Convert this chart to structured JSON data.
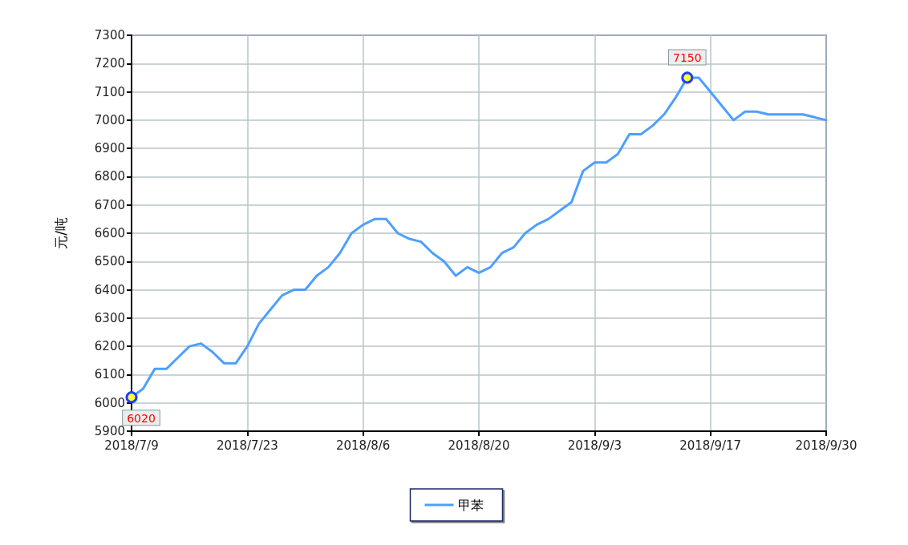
{
  "chart_data": {
    "type": "line",
    "ylabel": "元/吨",
    "categories": [
      "2018/7/9",
      null,
      null,
      null,
      null,
      null,
      null,
      null,
      null,
      null,
      "2018/7/23",
      null,
      null,
      null,
      null,
      null,
      null,
      null,
      null,
      null,
      "2018/8/6",
      null,
      null,
      null,
      null,
      null,
      null,
      null,
      null,
      null,
      "2018/8/20",
      null,
      null,
      null,
      null,
      null,
      null,
      null,
      null,
      null,
      "2018/9/3",
      null,
      null,
      null,
      null,
      null,
      null,
      null,
      null,
      null,
      "2018/9/17",
      null,
      null,
      null,
      null,
      null,
      null,
      null,
      null,
      null,
      "2018/9/30"
    ],
    "series": [
      {
        "name": "甲苯",
        "color": "#4d9fff",
        "values": [
          6020,
          6050,
          6120,
          6120,
          6160,
          6200,
          6210,
          6180,
          6140,
          6140,
          6200,
          6280,
          6330,
          6380,
          6400,
          6400,
          6450,
          6480,
          6530,
          6600,
          6630,
          6650,
          6650,
          6600,
          6580,
          6570,
          6530,
          6500,
          6450,
          6480,
          6460,
          6480,
          6530,
          6550,
          6600,
          6630,
          6650,
          6680,
          6710,
          6820,
          6850,
          6850,
          6880,
          6950,
          6950,
          6980,
          7020,
          7080,
          7150,
          7150,
          7100,
          7050,
          7000,
          7030,
          7030,
          7020,
          7020,
          7020,
          7020,
          7010,
          7000
        ],
        "value_labels": [
          "6020",
          null,
          null,
          null,
          null,
          null,
          null,
          null,
          null,
          null,
          null,
          null,
          null,
          null,
          null,
          null,
          null,
          null,
          null,
          null,
          null,
          null,
          null,
          null,
          null,
          null,
          null,
          null,
          null,
          null,
          null,
          null,
          null,
          null,
          null,
          null,
          null,
          null,
          null,
          null,
          null,
          null,
          null,
          null,
          null,
          null,
          null,
          null,
          "7150",
          null,
          null,
          null,
          null,
          null,
          null,
          null,
          null,
          null,
          null,
          null,
          null
        ]
      }
    ],
    "ylim": [
      5900,
      7300
    ],
    "yticks": [
      5900,
      6000,
      6100,
      6200,
      6300,
      6400,
      6500,
      6600,
      6700,
      6800,
      6900,
      7000,
      7100,
      7200,
      7300
    ],
    "grid": true,
    "legend": "bottom",
    "marker": "none",
    "line_style": "solid"
  }
}
